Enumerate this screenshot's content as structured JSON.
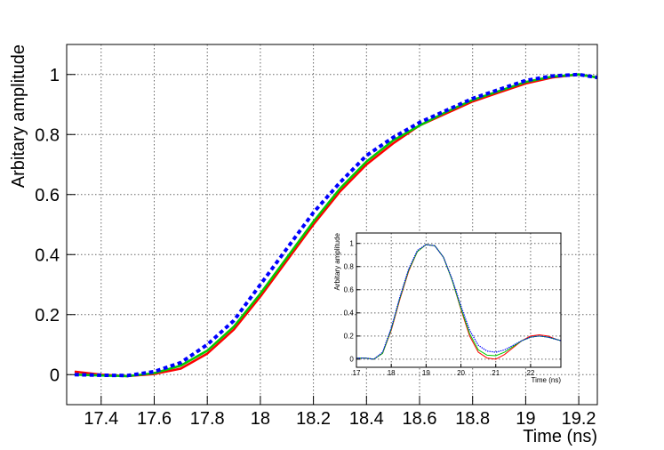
{
  "chart_data": [
    {
      "type": "line",
      "x_label": "Time (ns)",
      "y_label": "Arbitary amplitude",
      "x": [
        17.3,
        17.4,
        17.5,
        17.6,
        17.7,
        17.8,
        17.9,
        18.0,
        18.1,
        18.2,
        18.3,
        18.4,
        18.5,
        18.6,
        18.7,
        18.8,
        18.9,
        19.0,
        19.1,
        19.2,
        19.27
      ],
      "series": [
        {
          "color": "#ff0000",
          "dash": false,
          "values": [
            0.01,
            0.0,
            -0.005,
            0.002,
            0.02,
            0.07,
            0.15,
            0.26,
            0.38,
            0.5,
            0.61,
            0.7,
            0.77,
            0.83,
            0.87,
            0.91,
            0.94,
            0.97,
            0.99,
            1.0,
            0.99
          ]
        },
        {
          "color": "#00cc00",
          "dash": false,
          "values": [
            0.0,
            -0.003,
            -0.005,
            0.005,
            0.03,
            0.08,
            0.16,
            0.27,
            0.39,
            0.51,
            0.62,
            0.71,
            0.78,
            0.83,
            0.875,
            0.915,
            0.945,
            0.975,
            0.993,
            1.0,
            0.99
          ]
        },
        {
          "color": "#0000ff",
          "dash": true,
          "values": [
            0.0,
            -0.002,
            -0.003,
            0.01,
            0.04,
            0.1,
            0.18,
            0.3,
            0.42,
            0.54,
            0.64,
            0.73,
            0.79,
            0.84,
            0.88,
            0.92,
            0.95,
            0.98,
            0.995,
            1.0,
            0.99
          ]
        }
      ],
      "xlim": [
        17.27,
        19.27
      ],
      "xticks": [
        17.4,
        17.6,
        17.8,
        18,
        18.2,
        18.4,
        18.6,
        18.8,
        19,
        19.2
      ],
      "ylim": [
        -0.1,
        1.1
      ],
      "yticks": [
        0,
        0.2,
        0.4,
        0.6,
        0.8,
        1
      ],
      "grid": true
    },
    {
      "type": "line",
      "x_label": "Time (ns)",
      "y_label": "Arbitary amplitude",
      "x": [
        17,
        17.25,
        17.5,
        17.75,
        18,
        18.25,
        18.5,
        18.75,
        19,
        19.25,
        19.5,
        19.75,
        20,
        20.25,
        20.5,
        20.75,
        21,
        21.25,
        21.5,
        21.75,
        22,
        22.25,
        22.5,
        22.75,
        22.87
      ],
      "series": [
        {
          "color": "#ff0000",
          "dash": false,
          "values": [
            0.01,
            0.01,
            0.0,
            0.05,
            0.25,
            0.52,
            0.76,
            0.93,
            0.99,
            0.98,
            0.88,
            0.68,
            0.43,
            0.2,
            0.06,
            0.01,
            0.0,
            0.04,
            0.1,
            0.16,
            0.2,
            0.21,
            0.2,
            0.17,
            0.16
          ]
        },
        {
          "color": "#00cc00",
          "dash": false,
          "values": [
            0.01,
            0.01,
            0.0,
            0.05,
            0.26,
            0.53,
            0.77,
            0.93,
            0.99,
            0.98,
            0.88,
            0.68,
            0.44,
            0.22,
            0.08,
            0.035,
            0.03,
            0.06,
            0.11,
            0.16,
            0.19,
            0.2,
            0.19,
            0.17,
            0.16
          ]
        },
        {
          "color": "#0000ff",
          "dash": true,
          "values": [
            0.01,
            0.01,
            0.0,
            0.06,
            0.27,
            0.54,
            0.78,
            0.94,
            0.99,
            0.98,
            0.88,
            0.69,
            0.46,
            0.25,
            0.12,
            0.07,
            0.06,
            0.08,
            0.12,
            0.16,
            0.19,
            0.2,
            0.19,
            0.17,
            0.16
          ]
        }
      ],
      "xlim": [
        17,
        22.87
      ],
      "xticks": [
        17,
        18,
        19,
        20,
        21,
        22
      ],
      "ylim": [
        -0.07,
        1.09
      ],
      "yticks": [
        0,
        0.2,
        0.4,
        0.6,
        0.8,
        1
      ],
      "grid": true
    }
  ]
}
